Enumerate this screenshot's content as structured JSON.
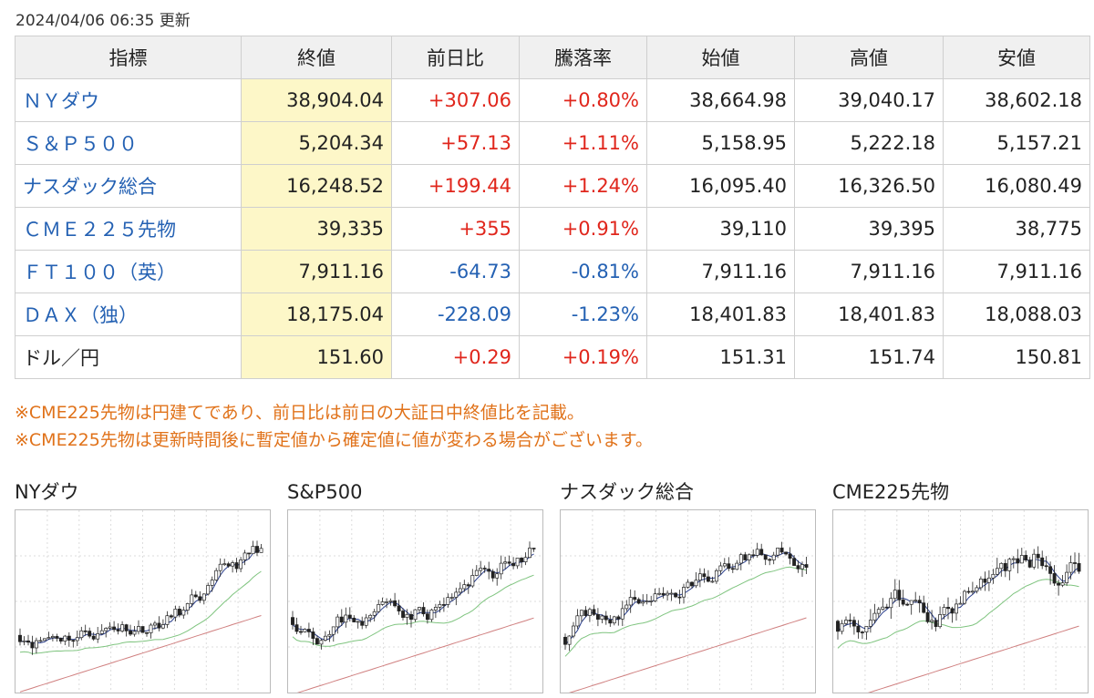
{
  "updated": "2024/04/06 06:35 更新",
  "table": {
    "headers": [
      "指標",
      "終値",
      "前日比",
      "騰落率",
      "始値",
      "高値",
      "安値"
    ],
    "rows": [
      {
        "name": "ＮＹダウ",
        "close": "38,904.04",
        "change": "+307.06",
        "rate": "+0.80%",
        "open": "38,664.98",
        "high": "39,040.17",
        "low": "38,602.18"
      },
      {
        "name": "Ｓ＆Ｐ５００",
        "close": "5,204.34",
        "change": "+57.13",
        "rate": "+1.11%",
        "open": "5,158.95",
        "high": "5,222.18",
        "low": "5,157.21"
      },
      {
        "name": "ナスダック総合",
        "close": "16,248.52",
        "change": "+199.44",
        "rate": "+1.24%",
        "open": "16,095.40",
        "high": "16,326.50",
        "low": "16,080.49"
      },
      {
        "name": "ＣＭＥ２２５先物",
        "close": "39,335",
        "change": "+355",
        "rate": "+0.91%",
        "open": "39,110",
        "high": "39,395",
        "low": "38,775"
      },
      {
        "name": "ＦＴ１００（英）",
        "close": "7,911.16",
        "change": "-64.73",
        "rate": "-0.81%",
        "open": "7,911.16",
        "high": "7,911.16",
        "low": "7,911.16"
      },
      {
        "name": "ＤＡＸ（独）",
        "close": "18,175.04",
        "change": "-228.09",
        "rate": "-1.23%",
        "open": "18,401.83",
        "high": "18,401.83",
        "low": "18,088.03"
      },
      {
        "name": "ドル／円",
        "close": "151.60",
        "change": "+0.29",
        "rate": "+0.19%",
        "open": "151.31",
        "high": "151.74",
        "low": "150.81"
      }
    ]
  },
  "notes": [
    "※CME225先物は円建てであり、前日比は前日の大証日中終値比を記載。",
    "※CME225先物は更新時間後に暫定値から確定値に値が変わる場合がございます。"
  ],
  "charts": [
    {
      "title": "NYダウ"
    },
    {
      "title": "S&P500"
    },
    {
      "title": "ナスダック総合"
    },
    {
      "title": "CME225先物"
    }
  ],
  "colors": {
    "up": "#e0261c",
    "down": "#2461b3",
    "link": "#2461b3",
    "note": "#e0721a",
    "close_bg": "#fdf7c8",
    "header_bg": "#f0f0f0",
    "ma_short": "#2b3f8c",
    "ma_mid": "#7fc47f",
    "ma_long": "#d08080"
  }
}
